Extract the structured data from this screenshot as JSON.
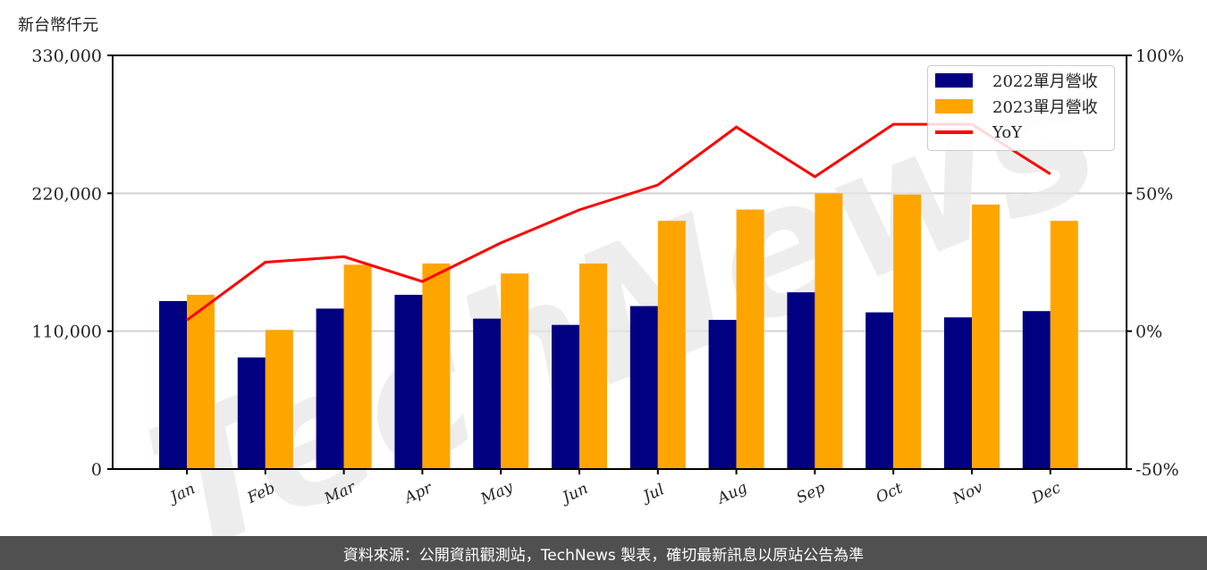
{
  "unit_label": "新台幣仟元",
  "footer": "資料來源：公開資訊觀測站，TechNews 製表，確切最新訊息以原站公告為準",
  "watermark": "TechNews",
  "legend": {
    "s2022": "2022單月營收",
    "s2023": "2023單月營收",
    "yoy": "YoY"
  },
  "colors": {
    "s2022": "#000080",
    "s2023": "#ffa500",
    "yoy": "#ff0000"
  },
  "chart_data": {
    "type": "bar",
    "title": "",
    "xlabel": "",
    "ylabel": "新台幣仟元",
    "y2label": "YoY",
    "categories": [
      "Jan",
      "Feb",
      "Mar",
      "Apr",
      "May",
      "Jun",
      "Jul",
      "Aug",
      "Sep",
      "Oct",
      "Nov",
      "Dec"
    ],
    "ylim": [
      0,
      330000
    ],
    "y_ticks": [
      "0",
      "110,000",
      "220,000",
      "330,000"
    ],
    "y2lim": [
      -50,
      100
    ],
    "y2_ticks": [
      "-50%",
      "0%",
      "50%",
      "100%"
    ],
    "grid": "horizontal",
    "legend_position": "upper right",
    "series": [
      {
        "name": "2022單月營收",
        "type": "bar",
        "values": [
          134000,
          89000,
          128000,
          139000,
          120000,
          115000,
          130000,
          119000,
          141000,
          125000,
          121000,
          126000
        ]
      },
      {
        "name": "2023單月營收",
        "type": "bar",
        "values": [
          139000,
          111000,
          163000,
          164000,
          156000,
          164000,
          198000,
          207000,
          220000,
          219000,
          211000,
          198000
        ]
      },
      {
        "name": "YoY",
        "type": "line",
        "axis": "right",
        "unit": "%",
        "values": [
          4,
          25,
          27,
          18,
          32,
          44,
          53,
          74,
          56,
          75,
          75,
          57
        ]
      }
    ]
  }
}
